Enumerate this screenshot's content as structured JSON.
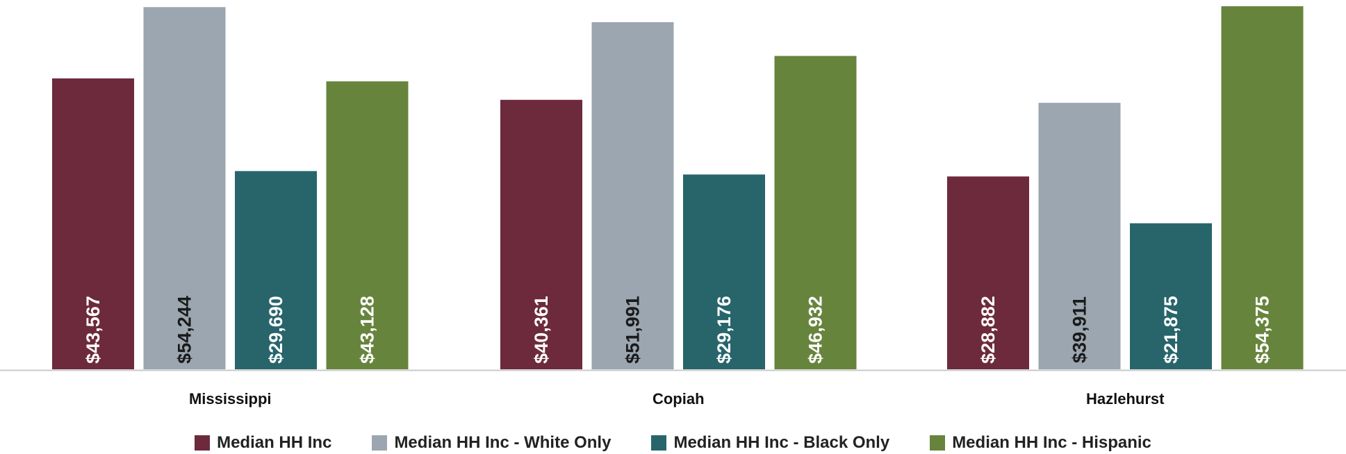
{
  "chart_data": {
    "type": "bar",
    "title": "",
    "xlabel": "",
    "ylabel": "",
    "ylim": [
      0,
      54375
    ],
    "grid": false,
    "legend_position": "bottom",
    "categories": [
      "Mississippi",
      "Copiah",
      "Hazlehurst"
    ],
    "series": [
      {
        "name": "Median HH Inc",
        "color": "#6d2a3c",
        "label_color": "#ffffff",
        "values": [
          43567,
          40361,
          28882
        ],
        "labels": [
          "$43,567",
          "$40,361",
          "$28,882"
        ]
      },
      {
        "name": "Median HH Inc - White Only",
        "color": "#9ba6b0",
        "label_color": "#1a1a1a",
        "values": [
          54244,
          51991,
          39911
        ],
        "labels": [
          "$54,244",
          "$51,991",
          "$39,911"
        ]
      },
      {
        "name": "Median HH Inc - Black Only",
        "color": "#27656b",
        "label_color": "#ffffff",
        "values": [
          29690,
          29176,
          21875
        ],
        "labels": [
          "$29,690",
          "$29,176",
          "$21,875"
        ]
      },
      {
        "name": "Median HH Inc - Hispanic",
        "color": "#67843d",
        "label_color": "#ffffff",
        "values": [
          43128,
          46932,
          54375
        ],
        "labels": [
          "$43,128",
          "$46,932",
          "$54,375"
        ]
      }
    ]
  }
}
